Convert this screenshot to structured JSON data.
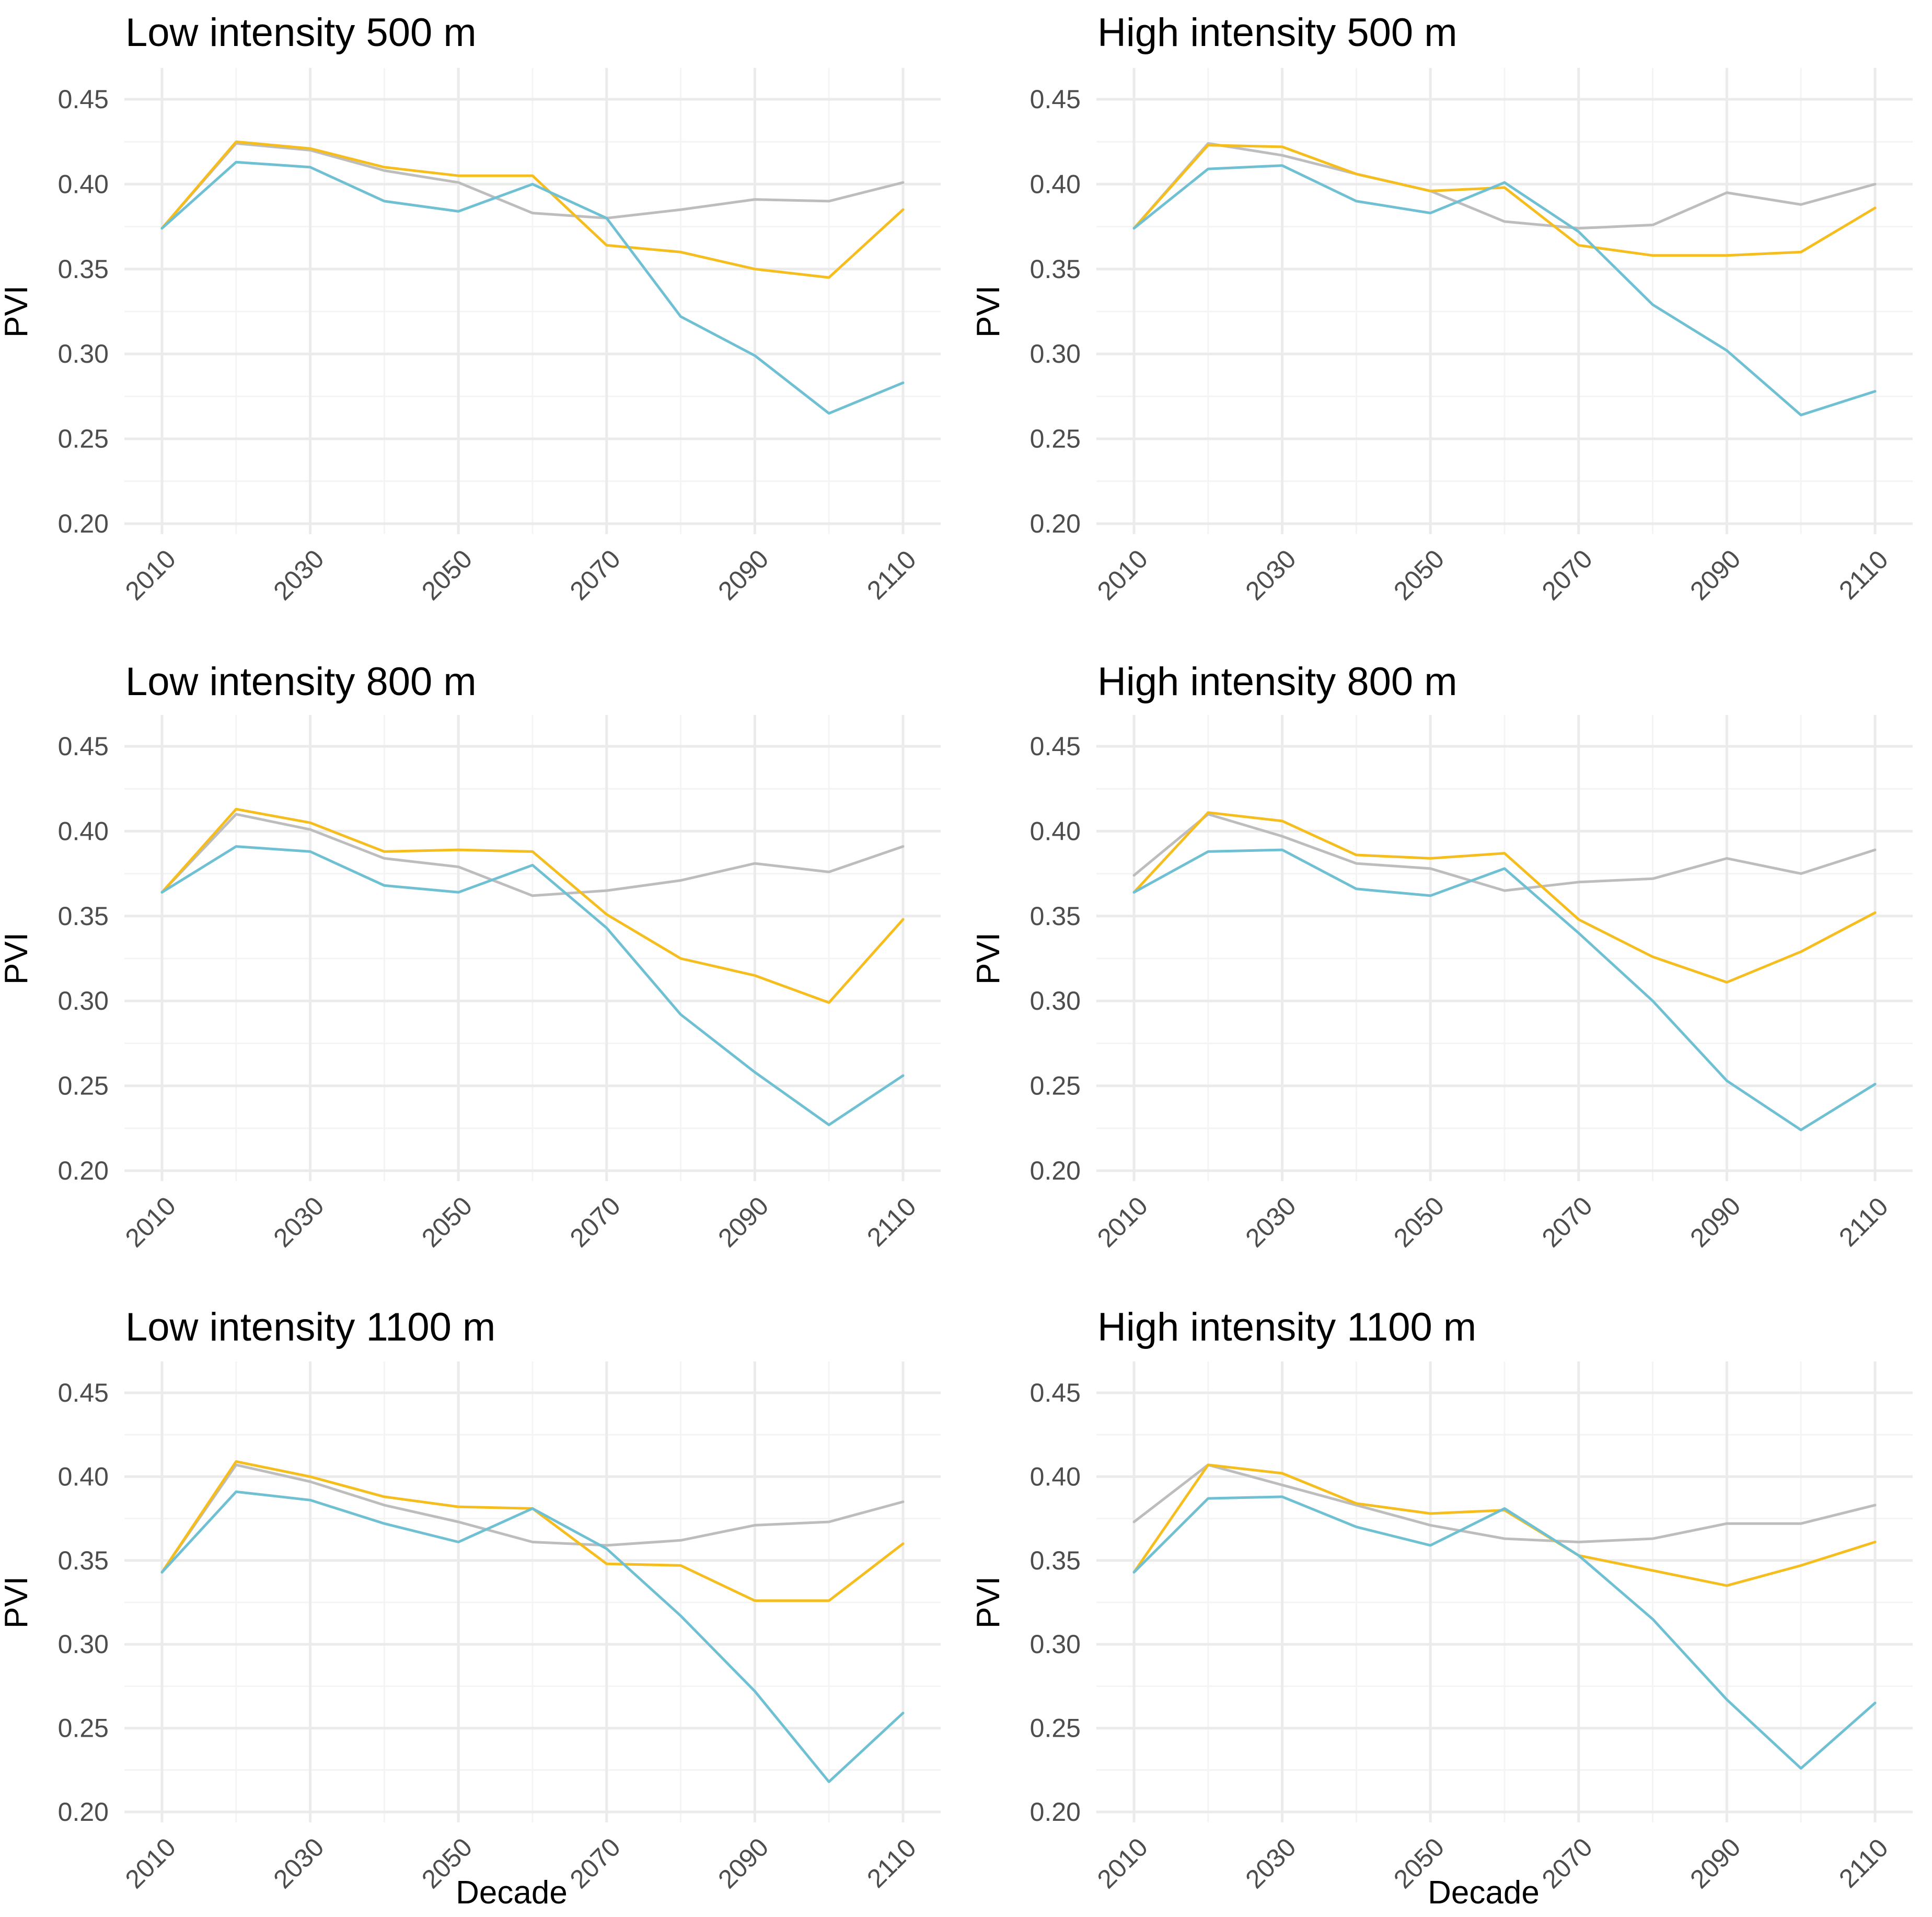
{
  "chart_data": [
    {
      "type": "line",
      "title": "Low intensity 500 m",
      "xlabel": "",
      "ylabel": "PVI",
      "x": [
        2010,
        2020,
        2030,
        2040,
        2050,
        2060,
        2070,
        2080,
        2090,
        2100,
        2110
      ],
      "xticks": [
        "2010",
        "2030",
        "2050",
        "2070",
        "2090",
        "2110"
      ],
      "yticks": [
        "0.20",
        "0.25",
        "0.30",
        "0.35",
        "0.40",
        "0.45"
      ],
      "ylim": [
        0.2,
        0.45
      ],
      "grid": true,
      "series": [
        {
          "name": "grey",
          "color": "#bdbdbd",
          "values": [
            0.374,
            0.424,
            0.42,
            0.408,
            0.401,
            0.383,
            0.38,
            0.385,
            0.391,
            0.39,
            0.401
          ]
        },
        {
          "name": "yellow",
          "color": "#f5be1e",
          "values": [
            0.374,
            0.425,
            0.421,
            0.41,
            0.405,
            0.405,
            0.364,
            0.36,
            0.35,
            0.345,
            0.385
          ]
        },
        {
          "name": "blue",
          "color": "#6fc0d3",
          "values": [
            0.374,
            0.413,
            0.41,
            0.39,
            0.384,
            0.4,
            0.38,
            0.322,
            0.299,
            0.265,
            0.283
          ]
        }
      ]
    },
    {
      "type": "line",
      "title": "High intensity 500 m",
      "xlabel": "",
      "ylabel": "PVI",
      "x": [
        2010,
        2020,
        2030,
        2040,
        2050,
        2060,
        2070,
        2080,
        2090,
        2100,
        2110
      ],
      "xticks": [
        "2010",
        "2030",
        "2050",
        "2070",
        "2090",
        "2110"
      ],
      "yticks": [
        "0.20",
        "0.25",
        "0.30",
        "0.35",
        "0.40",
        "0.45"
      ],
      "ylim": [
        0.2,
        0.45
      ],
      "grid": true,
      "series": [
        {
          "name": "grey",
          "color": "#bdbdbd",
          "values": [
            0.374,
            0.424,
            0.417,
            0.406,
            0.396,
            0.378,
            0.374,
            0.376,
            0.395,
            0.388,
            0.4
          ]
        },
        {
          "name": "yellow",
          "color": "#f5be1e",
          "values": [
            0.374,
            0.423,
            0.422,
            0.406,
            0.396,
            0.398,
            0.364,
            0.358,
            0.358,
            0.36,
            0.386
          ]
        },
        {
          "name": "blue",
          "color": "#6fc0d3",
          "values": [
            0.374,
            0.409,
            0.411,
            0.39,
            0.383,
            0.401,
            0.372,
            0.329,
            0.302,
            0.264,
            0.278
          ]
        }
      ]
    },
    {
      "type": "line",
      "title": "Low intensity 800 m",
      "xlabel": "",
      "ylabel": "PVI",
      "x": [
        2010,
        2020,
        2030,
        2040,
        2050,
        2060,
        2070,
        2080,
        2090,
        2100,
        2110
      ],
      "xticks": [
        "2010",
        "2030",
        "2050",
        "2070",
        "2090",
        "2110"
      ],
      "yticks": [
        "0.20",
        "0.25",
        "0.30",
        "0.35",
        "0.40",
        "0.45"
      ],
      "ylim": [
        0.2,
        0.45
      ],
      "grid": true,
      "series": [
        {
          "name": "grey",
          "color": "#bdbdbd",
          "values": [
            0.364,
            0.41,
            0.401,
            0.384,
            0.379,
            0.362,
            0.365,
            0.371,
            0.381,
            0.376,
            0.391
          ]
        },
        {
          "name": "yellow",
          "color": "#f5be1e",
          "values": [
            0.364,
            0.413,
            0.405,
            0.388,
            0.389,
            0.388,
            0.351,
            0.325,
            0.315,
            0.299,
            0.348
          ]
        },
        {
          "name": "blue",
          "color": "#6fc0d3",
          "values": [
            0.364,
            0.391,
            0.388,
            0.368,
            0.364,
            0.38,
            0.343,
            0.292,
            0.258,
            0.227,
            0.256
          ]
        }
      ]
    },
    {
      "type": "line",
      "title": "High intensity 800 m",
      "xlabel": "",
      "ylabel": "PVI",
      "x": [
        2010,
        2020,
        2030,
        2040,
        2050,
        2060,
        2070,
        2080,
        2090,
        2100,
        2110
      ],
      "xticks": [
        "2010",
        "2030",
        "2050",
        "2070",
        "2090",
        "2110"
      ],
      "yticks": [
        "0.20",
        "0.25",
        "0.30",
        "0.35",
        "0.40",
        "0.45"
      ],
      "ylim": [
        0.2,
        0.45
      ],
      "grid": true,
      "series": [
        {
          "name": "grey",
          "color": "#bdbdbd",
          "values": [
            0.374,
            0.41,
            0.397,
            0.381,
            0.378,
            0.365,
            0.37,
            0.372,
            0.384,
            0.375,
            0.389
          ]
        },
        {
          "name": "yellow",
          "color": "#f5be1e",
          "values": [
            0.364,
            0.411,
            0.406,
            0.386,
            0.384,
            0.387,
            0.348,
            0.326,
            0.311,
            0.329,
            0.352
          ]
        },
        {
          "name": "blue",
          "color": "#6fc0d3",
          "values": [
            0.364,
            0.388,
            0.389,
            0.366,
            0.362,
            0.378,
            0.34,
            0.3,
            0.253,
            0.224,
            0.251
          ]
        }
      ]
    },
    {
      "type": "line",
      "title": "Low intensity 1100 m",
      "xlabel": "Decade",
      "ylabel": "PVI",
      "x": [
        2010,
        2020,
        2030,
        2040,
        2050,
        2060,
        2070,
        2080,
        2090,
        2100,
        2110
      ],
      "xticks": [
        "2010",
        "2030",
        "2050",
        "2070",
        "2090",
        "2110"
      ],
      "yticks": [
        "0.20",
        "0.25",
        "0.30",
        "0.35",
        "0.40",
        "0.45"
      ],
      "ylim": [
        0.2,
        0.45
      ],
      "grid": true,
      "series": [
        {
          "name": "grey",
          "color": "#bdbdbd",
          "values": [
            0.343,
            0.407,
            0.397,
            0.383,
            0.373,
            0.361,
            0.359,
            0.362,
            0.371,
            0.373,
            0.385
          ]
        },
        {
          "name": "yellow",
          "color": "#f5be1e",
          "values": [
            0.343,
            0.409,
            0.4,
            0.388,
            0.382,
            0.381,
            0.348,
            0.347,
            0.326,
            0.326,
            0.36
          ]
        },
        {
          "name": "blue",
          "color": "#6fc0d3",
          "values": [
            0.343,
            0.391,
            0.386,
            0.372,
            0.361,
            0.381,
            0.357,
            0.317,
            0.272,
            0.218,
            0.259
          ]
        }
      ]
    },
    {
      "type": "line",
      "title": "High intensity 1100 m",
      "xlabel": "Decade",
      "ylabel": "PVI",
      "x": [
        2010,
        2020,
        2030,
        2040,
        2050,
        2060,
        2070,
        2080,
        2090,
        2100,
        2110
      ],
      "xticks": [
        "2010",
        "2030",
        "2050",
        "2070",
        "2090",
        "2110"
      ],
      "yticks": [
        "0.20",
        "0.25",
        "0.30",
        "0.35",
        "0.40",
        "0.45"
      ],
      "ylim": [
        0.2,
        0.45
      ],
      "grid": true,
      "series": [
        {
          "name": "grey",
          "color": "#bdbdbd",
          "values": [
            0.373,
            0.407,
            0.395,
            0.383,
            0.371,
            0.363,
            0.361,
            0.363,
            0.372,
            0.372,
            0.383
          ]
        },
        {
          "name": "yellow",
          "color": "#f5be1e",
          "values": [
            0.343,
            0.407,
            0.402,
            0.384,
            0.378,
            0.38,
            0.353,
            0.344,
            0.335,
            0.347,
            0.361
          ]
        },
        {
          "name": "blue",
          "color": "#6fc0d3",
          "values": [
            0.343,
            0.387,
            0.388,
            0.37,
            0.359,
            0.381,
            0.353,
            0.315,
            0.267,
            0.226,
            0.265
          ]
        }
      ]
    }
  ]
}
